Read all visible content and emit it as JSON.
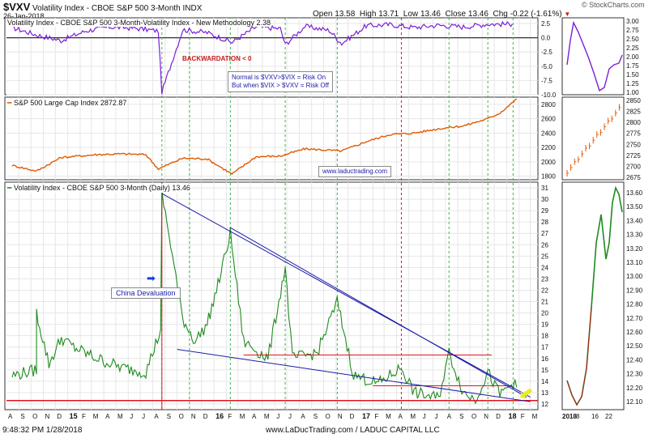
{
  "header": {
    "ticker": "$VXV",
    "name": "Volatility Index - CBOE S&P 500 3-Month",
    "exchange": "INDX",
    "date": "26-Jan-2018",
    "open_label": "Open",
    "open": "13.58",
    "high_label": "High",
    "high": "13.71",
    "low_label": "Low",
    "low": "13.46",
    "close_label": "Close",
    "close": "13.46",
    "chg_label": "Chg",
    "chg": "-0.22 (-1.61%)",
    "source": "© StockCharts.com"
  },
  "panel1": {
    "title": "Volatility Index - CBOE S&P 500 3-Month-Volatility Index - New Methodology 2.38",
    "backwardation": "BACKWARDATION < 0",
    "note_line1": "Normal is $VXV>$VIX = Risk On",
    "note_line2": "But when $VIX > $VXV = Risk Off",
    "y_ticks": [
      "2.5",
      "0.0",
      "-2.5",
      "-5.0",
      "-7.5",
      "-10.0"
    ],
    "side_y_ticks": [
      "3.00",
      "2.75",
      "2.50",
      "2.25",
      "2.00",
      "1.75",
      "1.50",
      "1.25",
      "1.00"
    ]
  },
  "panel2": {
    "title": "S&P 500 Large Cap Index 2872.87",
    "watermark": "www.laductrading.com",
    "y_ticks": [
      "2800",
      "2600",
      "2400",
      "2200",
      "2000",
      "1800"
    ],
    "side_y_ticks": [
      "2850",
      "2825",
      "2800",
      "2775",
      "2750",
      "2725",
      "2700",
      "2675"
    ]
  },
  "panel3": {
    "title": "Volatility Index - CBOE S&P 500 3-Month (Daily) 13.46",
    "annotation": "China Devaluation",
    "y_ticks": [
      "31",
      "30",
      "29",
      "28",
      "27",
      "26",
      "25",
      "24",
      "23",
      "22",
      "21",
      "20",
      "19",
      "18",
      "17",
      "16",
      "15",
      "14",
      "13",
      "12"
    ],
    "side_y_ticks": [
      "13.60",
      "13.50",
      "13.40",
      "13.30",
      "13.20",
      "13.10",
      "13.00",
      "12.90",
      "12.80",
      "12.70",
      "12.60",
      "12.50",
      "12.40",
      "12.30",
      "12.20",
      "12.10"
    ]
  },
  "x_axis": {
    "labels": [
      "A",
      "S",
      "O",
      "N",
      "D",
      "15",
      "F",
      "M",
      "A",
      "M",
      "J",
      "J",
      "A",
      "S",
      "O",
      "N",
      "D",
      "16",
      "F",
      "M",
      "A",
      "M",
      "J",
      "J",
      "A",
      "S",
      "O",
      "N",
      "D",
      "17",
      "F",
      "M",
      "A",
      "M",
      "J",
      "J",
      "A",
      "S",
      "O",
      "N",
      "D",
      "18",
      "F",
      "M"
    ],
    "side_labels": [
      "2018",
      "8",
      "16",
      "22"
    ]
  },
  "footer": {
    "timestamp": "9:48:32 PM 1/28/2018",
    "credit": "www.LaDucTrading.com / LADUC CAPITAL LLC"
  },
  "colors": {
    "ratio_line": "#7b1fd8",
    "spx_line": "#e05a00",
    "vxv_line": "#1f8a1f",
    "vxv_spike": "#c21a1a",
    "trendline": "#1a1aa8",
    "support": "#e0141e",
    "vertical_marker": "#39b54a",
    "arrow": "#e8ee1e"
  },
  "chart_data": [
    {
      "type": "line",
      "title": "Volatility Index - CBOE S&P 500 3-Month-Volatility Index - New Methodology",
      "last_value": 2.38,
      "ylim": [
        -10,
        3.5
      ],
      "x": [
        "2014-08",
        "2014-10",
        "2014-12",
        "2015-02",
        "2015-04",
        "2015-06",
        "2015-08",
        "2015-08-24",
        "2015-10",
        "2015-12",
        "2016-02",
        "2016-04",
        "2016-06",
        "2016-06-27",
        "2016-08",
        "2016-10",
        "2016-11",
        "2017-01",
        "2017-03",
        "2017-05",
        "2017-07",
        "2017-09",
        "2017-11",
        "2018-01"
      ],
      "values": [
        1.8,
        0.5,
        -0.5,
        1.2,
        1.9,
        1.7,
        1.2,
        -9.5,
        1.4,
        0.9,
        -0.8,
        1.9,
        1.6,
        -1.2,
        2.0,
        1.3,
        -1.0,
        2.1,
        2.3,
        1.8,
        2.2,
        1.9,
        2.4,
        2.38
      ]
    },
    {
      "type": "line",
      "title": "S&P 500 Large Cap Index",
      "last_value": 2872.87,
      "ylim": [
        1750,
        2900
      ],
      "x": [
        "2014-08",
        "2014-10",
        "2014-12",
        "2015-03",
        "2015-05",
        "2015-07",
        "2015-08",
        "2015-10",
        "2015-12",
        "2016-02",
        "2016-04",
        "2016-06",
        "2016-08",
        "2016-11",
        "2017-01",
        "2017-03",
        "2017-05",
        "2017-07",
        "2017-09",
        "2017-11",
        "2017-12",
        "2018-01-26"
      ],
      "values": [
        1950,
        1870,
        2060,
        2100,
        2110,
        2100,
        1900,
        2050,
        2040,
        1830,
        2070,
        2080,
        2180,
        2150,
        2280,
        2380,
        2400,
        2460,
        2500,
        2600,
        2680,
        2872.87
      ]
    },
    {
      "type": "line",
      "title": "Volatility Index - CBOE S&P 500 3-Month (Daily)",
      "last_value": 13.46,
      "ylim": [
        11.5,
        31.5
      ],
      "x": [
        "2014-08",
        "2014-10",
        "2014-10-15",
        "2014-11",
        "2014-12-16",
        "2015-01",
        "2015-03",
        "2015-05",
        "2015-07",
        "2015-08-21",
        "2015-08-24",
        "2015-09",
        "2015-10",
        "2015-11",
        "2015-12",
        "2016-01",
        "2016-02-11",
        "2016-03",
        "2016-05",
        "2016-06-27",
        "2016-07",
        "2016-09",
        "2016-11-04",
        "2016-12",
        "2017-02",
        "2017-04-13",
        "2017-05",
        "2017-07",
        "2017-08-10",
        "2017-09",
        "2017-10",
        "2017-11-15",
        "2017-12",
        "2018-01-17",
        "2018-01-26"
      ],
      "values": [
        14.5,
        15.0,
        20.0,
        15.5,
        17.8,
        17.0,
        16.0,
        15.2,
        14.8,
        18.5,
        30.5,
        26.0,
        19.5,
        17.5,
        19.0,
        23.0,
        27.0,
        17.5,
        16.0,
        24.0,
        16.0,
        16.5,
        21.0,
        14.5,
        13.8,
        15.2,
        13.0,
        12.5,
        16.5,
        13.0,
        12.4,
        14.8,
        12.8,
        13.9,
        13.46
      ],
      "support_line": 12.3,
      "resistance_line": 16.3
    }
  ]
}
